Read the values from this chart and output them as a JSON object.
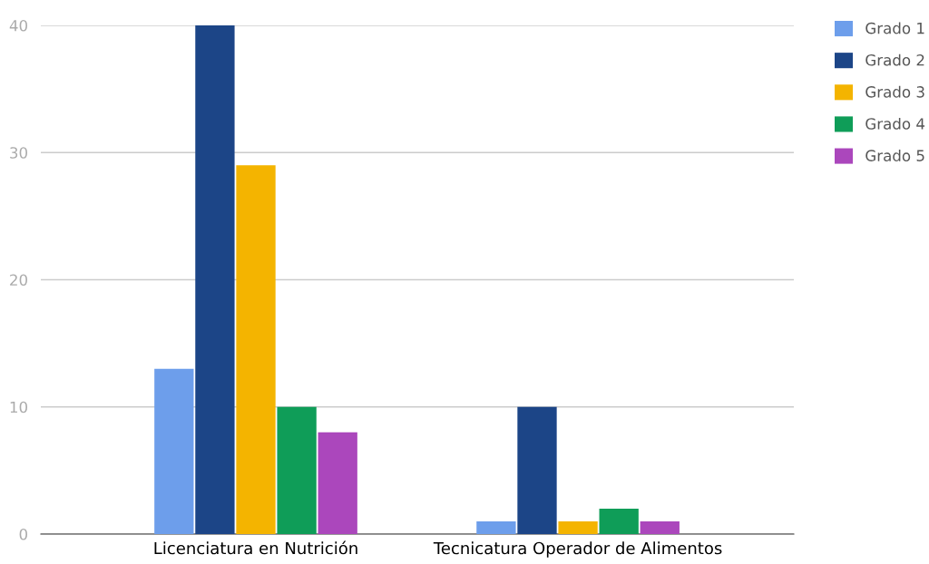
{
  "chart_data": {
    "type": "bar",
    "categories": [
      "Licenciatura en Nutrición",
      "Tecnicatura Operador de Alimentos"
    ],
    "series": [
      {
        "name": "Grado 1",
        "color": "#6d9eeb",
        "values": [
          13,
          1
        ]
      },
      {
        "name": "Grado 2",
        "color": "#1c4587",
        "values": [
          40,
          10
        ]
      },
      {
        "name": "Grado 3",
        "color": "#f4b400",
        "values": [
          29,
          1
        ]
      },
      {
        "name": "Grado 4",
        "color": "#0f9d58",
        "values": [
          10,
          2
        ]
      },
      {
        "name": "Grado 5",
        "color": "#ab47bc",
        "values": [
          8,
          1
        ]
      }
    ],
    "ylim": [
      0,
      40
    ],
    "yticks": [
      0,
      10,
      20,
      30,
      40
    ],
    "grid": "y",
    "legend": "top right"
  }
}
